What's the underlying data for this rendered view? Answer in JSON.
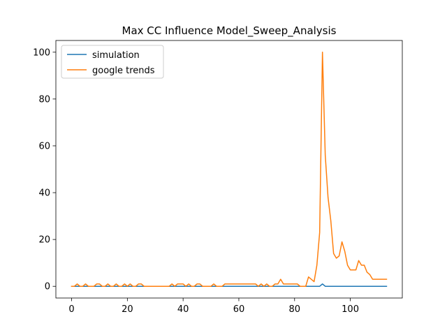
{
  "chart_data": {
    "type": "line",
    "title": "Max CC Influence Model_Sweep_Analysis",
    "xlabel": "",
    "ylabel": "",
    "xlim": [
      -5.65,
      118.65
    ],
    "ylim": [
      -5,
      105
    ],
    "xticks": [
      0,
      20,
      40,
      60,
      80,
      100
    ],
    "yticks": [
      0,
      20,
      40,
      60,
      80,
      100
    ],
    "grid": false,
    "legend_position": "upper-left",
    "series": [
      {
        "name": "simulation",
        "color": "#1f77b4",
        "x": [
          0,
          1,
          2,
          3,
          4,
          5,
          6,
          7,
          8,
          9,
          10,
          11,
          12,
          13,
          14,
          15,
          16,
          17,
          18,
          19,
          20,
          21,
          22,
          23,
          24,
          25,
          26,
          27,
          28,
          29,
          30,
          31,
          32,
          33,
          34,
          35,
          36,
          37,
          38,
          39,
          40,
          41,
          42,
          43,
          44,
          45,
          46,
          47,
          48,
          49,
          50,
          51,
          52,
          53,
          54,
          55,
          56,
          57,
          58,
          59,
          60,
          61,
          62,
          63,
          64,
          65,
          66,
          67,
          68,
          69,
          70,
          71,
          72,
          73,
          74,
          75,
          76,
          77,
          78,
          79,
          80,
          81,
          82,
          83,
          84,
          85,
          86,
          87,
          88,
          89,
          90,
          91,
          92,
          93,
          94,
          95,
          96,
          97,
          98,
          99,
          100,
          101,
          102,
          103,
          104,
          105,
          106,
          107,
          108,
          109,
          110,
          111,
          112,
          113
        ],
        "y": [
          0,
          0,
          0,
          0,
          0,
          0,
          0,
          0,
          0,
          0,
          0,
          0,
          0,
          0,
          0,
          0,
          0,
          0,
          0,
          0,
          0,
          0,
          0,
          0,
          0,
          0,
          0,
          0,
          0,
          0,
          0,
          0,
          0,
          0,
          0,
          0,
          0,
          0,
          0,
          0,
          0,
          0,
          0,
          0,
          0,
          0,
          0,
          0,
          0,
          0,
          0,
          0,
          0,
          0,
          0,
          0,
          0,
          0,
          0,
          0,
          0,
          0,
          0,
          0,
          0,
          0,
          0,
          0,
          0,
          0,
          0,
          0,
          0,
          0,
          0,
          0,
          0,
          0,
          0,
          0,
          0,
          0,
          0,
          0,
          0,
          0,
          0,
          0,
          0,
          0,
          1,
          0,
          0,
          0,
          0,
          0,
          0,
          0,
          0,
          0,
          0,
          0,
          0,
          0,
          0,
          0,
          0,
          0,
          0,
          0,
          0,
          0,
          0,
          0
        ]
      },
      {
        "name": "google trends",
        "color": "#ff7f0e",
        "x": [
          0,
          1,
          2,
          3,
          4,
          5,
          6,
          7,
          8,
          9,
          10,
          11,
          12,
          13,
          14,
          15,
          16,
          17,
          18,
          19,
          20,
          21,
          22,
          23,
          24,
          25,
          26,
          27,
          28,
          29,
          30,
          31,
          32,
          33,
          34,
          35,
          36,
          37,
          38,
          39,
          40,
          41,
          42,
          43,
          44,
          45,
          46,
          47,
          48,
          49,
          50,
          51,
          52,
          53,
          54,
          55,
          56,
          57,
          58,
          59,
          60,
          61,
          62,
          63,
          64,
          65,
          66,
          67,
          68,
          69,
          70,
          71,
          72,
          73,
          74,
          75,
          76,
          77,
          78,
          79,
          80,
          81,
          82,
          83,
          84,
          85,
          86,
          87,
          88,
          89,
          90,
          91,
          92,
          93,
          94,
          95,
          96,
          97,
          98,
          99,
          100,
          101,
          102,
          103,
          104,
          105,
          106,
          107,
          108,
          109,
          110,
          111,
          112,
          113
        ],
        "y": [
          0,
          0,
          1,
          0,
          0,
          1,
          0,
          0,
          0,
          1,
          1,
          0,
          0,
          1,
          0,
          0,
          1,
          0,
          0,
          1,
          0,
          1,
          0,
          0,
          1,
          1,
          0,
          0,
          0,
          0,
          0,
          0,
          0,
          0,
          0,
          0,
          1,
          0,
          1,
          1,
          1,
          0,
          1,
          0,
          0,
          1,
          1,
          0,
          0,
          0,
          0,
          1,
          0,
          0,
          0,
          1,
          1,
          1,
          1,
          1,
          1,
          1,
          1,
          1,
          1,
          1,
          1,
          0,
          1,
          0,
          1,
          0,
          0,
          1,
          1,
          3,
          1,
          1,
          1,
          1,
          1,
          1,
          0,
          0,
          0,
          4,
          3,
          2,
          9,
          23,
          100,
          56,
          38,
          28,
          14,
          12,
          13,
          19,
          15,
          9,
          7,
          7,
          7,
          11,
          9,
          9,
          6,
          5,
          3,
          3,
          3,
          3,
          3,
          3
        ]
      }
    ]
  }
}
